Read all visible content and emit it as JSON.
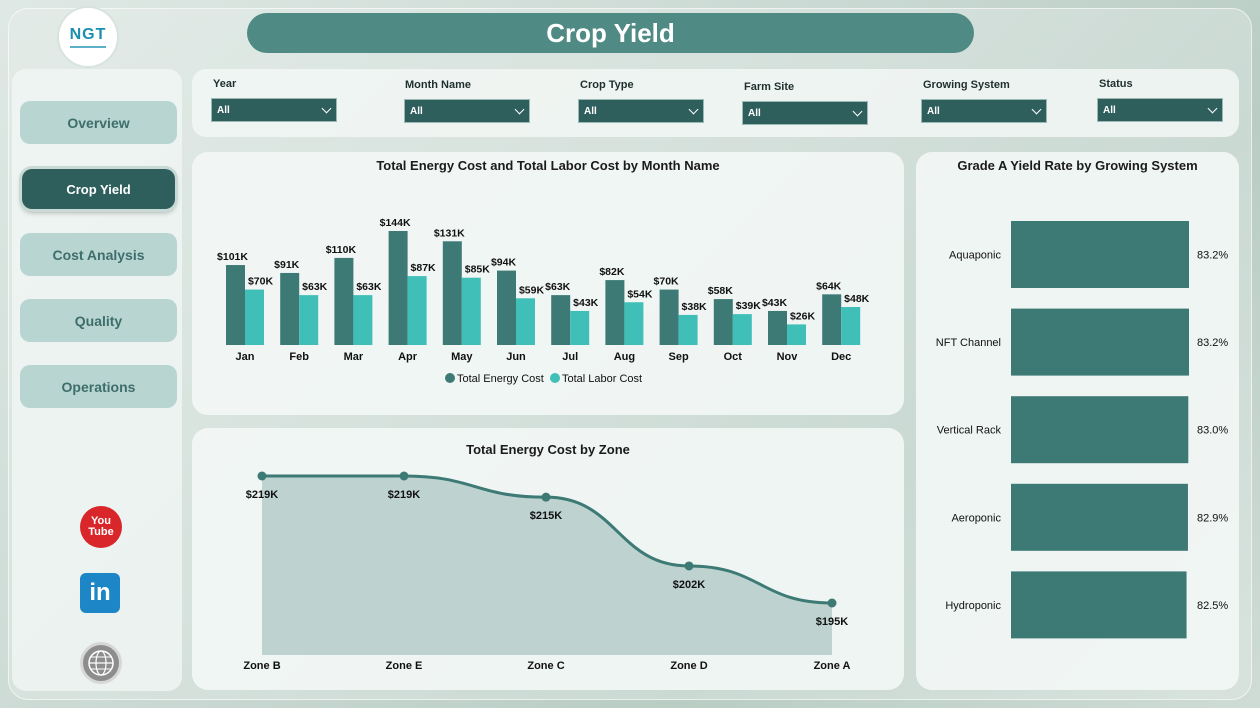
{
  "title": "Crop Yield",
  "logo": "NGT",
  "nav": [
    {
      "label": "Overview",
      "active": false
    },
    {
      "label": "Crop Yield",
      "active": true
    },
    {
      "label": "Cost Analysis",
      "active": false
    },
    {
      "label": "Quality",
      "active": false
    },
    {
      "label": "Operations",
      "active": false
    }
  ],
  "social": {
    "youtube": "You Tube",
    "linkedin": "in"
  },
  "filters": [
    {
      "label": "Year",
      "value": "All"
    },
    {
      "label": "Month Name",
      "value": "All"
    },
    {
      "label": "Crop Type",
      "value": "All"
    },
    {
      "label": "Farm Site",
      "value": "All"
    },
    {
      "label": "Growing System",
      "value": "All"
    },
    {
      "label": "Status",
      "value": "All"
    }
  ],
  "colors": {
    "energy": "#3d7a75",
    "labor": "#3fbfb7",
    "accent": "#2f5f5d"
  },
  "chart_data": [
    {
      "type": "bar",
      "title": "Total Energy Cost and Total Labor Cost by Month Name",
      "categories": [
        "Jan",
        "Feb",
        "Mar",
        "Apr",
        "May",
        "Jun",
        "Jul",
        "Aug",
        "Sep",
        "Oct",
        "Nov",
        "Dec"
      ],
      "series": [
        {
          "name": "Total Energy Cost",
          "values": [
            101,
            91,
            110,
            144,
            131,
            94,
            63,
            82,
            70,
            58,
            43,
            64
          ],
          "labels": [
            "$101K",
            "$91K",
            "$110K",
            "$144K",
            "$131K",
            "$94K",
            "$63K",
            "$82K",
            "$70K",
            "$58K",
            "$43K",
            "$64K"
          ]
        },
        {
          "name": "Total Labor Cost",
          "values": [
            70,
            63,
            63,
            87,
            85,
            59,
            43,
            54,
            38,
            39,
            26,
            48
          ],
          "labels": [
            "$70K",
            "$63K",
            "$63K",
            "$87K",
            "$85K",
            "$59K",
            "$43K",
            "$54K",
            "$38K",
            "$39K",
            "$26K",
            "$48K"
          ]
        }
      ],
      "legend": "bottom"
    },
    {
      "type": "bar",
      "orientation": "horizontal",
      "title": "Grade A Yield Rate by Growing System",
      "categories": [
        "Aquaponic",
        "NFT Channel",
        "Vertical Rack",
        "Aeroponic",
        "Hydroponic"
      ],
      "values": [
        83.2,
        83.2,
        83.0,
        82.9,
        82.5
      ],
      "labels": [
        "83.2%",
        "83.2%",
        "83.0%",
        "82.9%",
        "82.5%"
      ]
    },
    {
      "type": "area",
      "title": "Total Energy Cost by Zone",
      "categories": [
        "Zone B",
        "Zone E",
        "Zone C",
        "Zone D",
        "Zone A"
      ],
      "values": [
        219,
        219,
        215,
        202,
        195
      ],
      "labels": [
        "$219K",
        "$219K",
        "$215K",
        "$202K",
        "$195K"
      ]
    }
  ]
}
